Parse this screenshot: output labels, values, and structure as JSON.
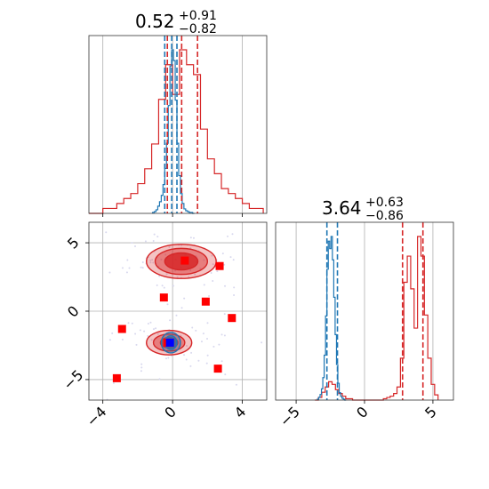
{
  "colors": {
    "primary": "#d62728",
    "secondary": "#1f77b4",
    "marker": "#ff0000",
    "truth": "#0000ff",
    "grid": "#b0b0b0",
    "scatter": "#d8d8ee"
  },
  "chart_data": [
    {
      "type": "histogram",
      "panel": "top-left",
      "title": {
        "median": "0.52",
        "plus": "+0.91",
        "minus": "−0.82"
      },
      "xlim": [
        -4.8,
        5.4
      ],
      "x_ticks": [
        -4,
        0,
        4
      ],
      "y_ticks_shown": false,
      "grid": true,
      "series": [
        {
          "name": "",
          "color": "#d62728",
          "bin_centers": [
            -4.6,
            -4.2,
            -3.8,
            -3.4,
            -3.0,
            -2.6,
            -2.2,
            -1.8,
            -1.4,
            -1.0,
            -0.6,
            -0.2,
            0.2,
            0.6,
            1.0,
            1.4,
            1.8,
            2.2,
            2.6,
            3.0,
            3.4,
            3.8,
            4.2,
            4.6,
            5.0
          ],
          "counts": [
            0,
            0,
            1,
            1,
            2,
            3,
            4,
            6,
            9,
            14,
            23,
            30,
            24,
            33,
            30,
            28,
            17,
            11,
            8,
            5,
            4,
            3,
            2,
            1,
            1
          ],
          "quantile_lines": [
            -0.3,
            0.52,
            1.43
          ]
        },
        {
          "name": "",
          "color": "#1f77b4",
          "bin_centers": [
            -1.1,
            -1.0,
            -0.9,
            -0.8,
            -0.7,
            -0.6,
            -0.5,
            -0.4,
            -0.3,
            -0.2,
            -0.1,
            0.0,
            0.1,
            0.2,
            0.3,
            0.4,
            0.5,
            0.6,
            0.7,
            0.8,
            0.9,
            1.0,
            1.1,
            1.2
          ],
          "counts": [
            1,
            2,
            4,
            8,
            13,
            20,
            32,
            50,
            78,
            120,
            164,
            182,
            170,
            126,
            78,
            42,
            22,
            11,
            5,
            3,
            2,
            1,
            1,
            0
          ],
          "quantile_lines": [
            -0.45,
            -0.05,
            0.25
          ]
        }
      ]
    },
    {
      "type": "scatter-contour",
      "panel": "bottom-left",
      "xlim": [
        -4.8,
        5.4
      ],
      "ylim": [
        -6.5,
        6.5
      ],
      "x_ticks": [
        -4,
        0,
        4
      ],
      "y_ticks": [
        5,
        0,
        -5
      ],
      "grid": true,
      "clusters": [
        {
          "color": "#d62728",
          "center": [
            0.5,
            3.64
          ],
          "levels": [
            {
              "rx": 2.0,
              "ry": 1.25,
              "opacity": 0.28
            },
            {
              "rx": 1.5,
              "ry": 0.95,
              "opacity": 0.45
            },
            {
              "rx": 0.95,
              "ry": 0.62,
              "opacity": 0.85
            }
          ]
        },
        {
          "color": "#d62728",
          "center": [
            -0.2,
            -2.3
          ],
          "levels": [
            {
              "rx": 1.3,
              "ry": 0.9,
              "opacity": 0.28
            },
            {
              "rx": 0.9,
              "ry": 0.62,
              "opacity": 0.45
            },
            {
              "rx": 0.5,
              "ry": 0.38,
              "opacity": 0.85
            }
          ]
        },
        {
          "color": "#1f77b4",
          "center": [
            -0.1,
            -2.3
          ],
          "levels": [
            {
              "rx": 0.55,
              "ry": 0.75,
              "opacity": 0.3
            },
            {
              "rx": 0.35,
              "ry": 0.5,
              "opacity": 0.55
            },
            {
              "rx": 0.18,
              "ry": 0.28,
              "opacity": 0.9
            }
          ]
        }
      ],
      "markers": [
        {
          "x": 0.7,
          "y": 3.7,
          "color": "#ff0000"
        },
        {
          "x": 2.7,
          "y": 3.3,
          "color": "#ff0000"
        },
        {
          "x": -0.5,
          "y": 1.0,
          "color": "#ff0000"
        },
        {
          "x": 1.9,
          "y": 0.7,
          "color": "#ff0000"
        },
        {
          "x": 3.4,
          "y": -0.5,
          "color": "#ff0000"
        },
        {
          "x": -2.9,
          "y": -1.3,
          "color": "#ff0000"
        },
        {
          "x": -0.3,
          "y": -2.3,
          "color": "#ff0000"
        },
        {
          "x": 2.6,
          "y": -4.2,
          "color": "#ff0000"
        },
        {
          "x": -3.2,
          "y": -4.9,
          "color": "#ff0000"
        },
        {
          "x": -0.15,
          "y": -2.3,
          "color": "#0000ff"
        }
      ]
    },
    {
      "type": "histogram",
      "panel": "bottom-right",
      "title": {
        "median": "3.64",
        "plus": "+0.63",
        "minus": "−0.86"
      },
      "xlim": [
        -6.5,
        6.5
      ],
      "x_ticks": [
        -5,
        0,
        5
      ],
      "y_ticks_shown": false,
      "grid": true,
      "series": [
        {
          "name": "",
          "color": "#d62728",
          "bin_centers": [
            -3.5,
            -3.25,
            -3.0,
            -2.75,
            -2.5,
            -2.25,
            -2.0,
            -1.75,
            -1.5,
            -1.25,
            -1.0,
            -0.75,
            -0.5,
            -0.25,
            0.0,
            0.25,
            0.5,
            0.75,
            1.0,
            1.25,
            1.5,
            1.75,
            2.0,
            2.25,
            2.5,
            2.75,
            3.0,
            3.25,
            3.5,
            3.75,
            4.0,
            4.25,
            4.5,
            4.75,
            5.0,
            5.25
          ],
          "counts": [
            0,
            2,
            6,
            10,
            14,
            12,
            8,
            5,
            3,
            1,
            1,
            0,
            0,
            0,
            0,
            0,
            0,
            0,
            0,
            0,
            1,
            2,
            3,
            5,
            10,
            32,
            90,
            110,
            85,
            55,
            125,
            110,
            65,
            32,
            12,
            4
          ],
          "quantile_lines": [
            2.78,
            4.27
          ]
        },
        {
          "name": "",
          "color": "#1f77b4",
          "bin_centers": [
            -3.4,
            -3.3,
            -3.2,
            -3.1,
            -3.0,
            -2.9,
            -2.8,
            -2.7,
            -2.6,
            -2.5,
            -2.4,
            -2.3,
            -2.2,
            -2.1,
            -2.0,
            -1.9,
            -1.8,
            -1.7,
            -1.6,
            -1.5,
            -1.4
          ],
          "counts": [
            1,
            3,
            6,
            12,
            24,
            48,
            90,
            140,
            170,
            162,
            175,
            150,
            110,
            70,
            38,
            18,
            8,
            4,
            2,
            1,
            0
          ],
          "quantile_lines": [
            -2.75,
            -1.98
          ]
        }
      ]
    }
  ]
}
